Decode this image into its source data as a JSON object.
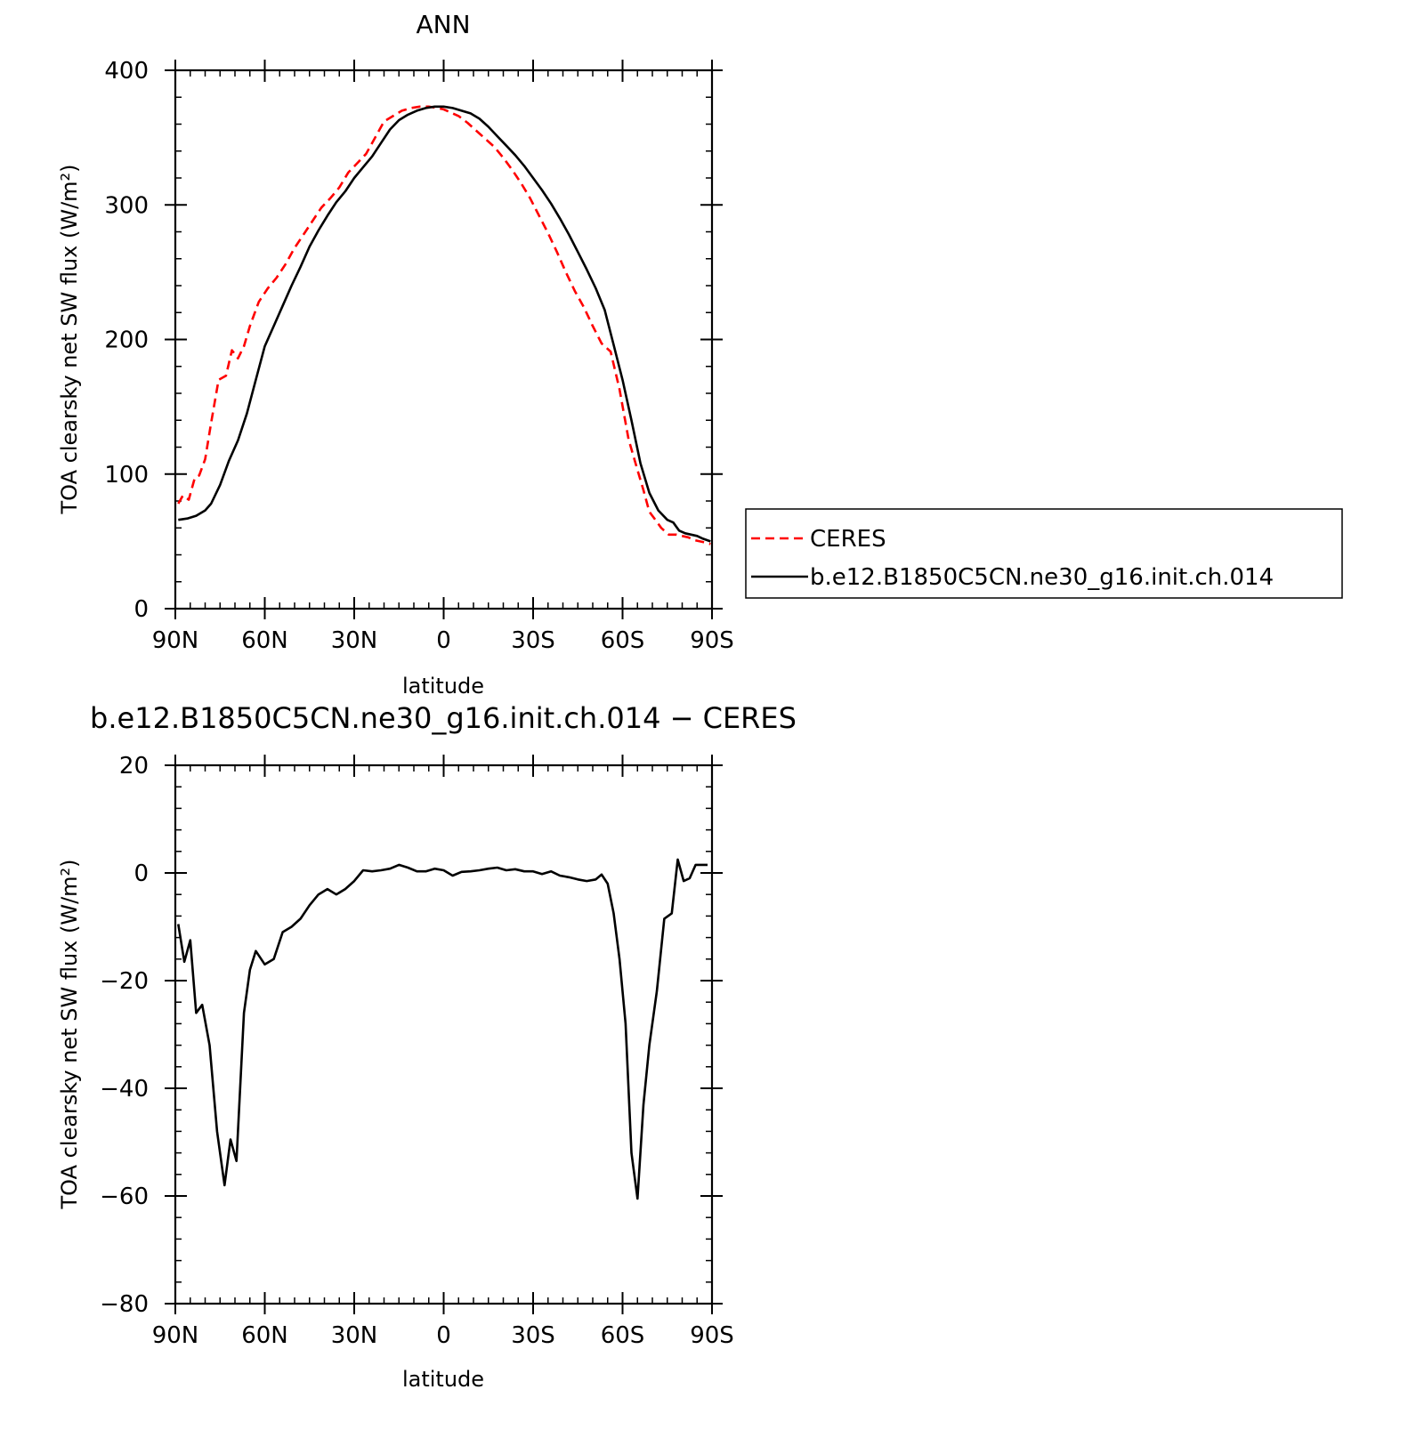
{
  "chart_data": [
    {
      "type": "line",
      "title": "ANN",
      "xlabel": "latitude",
      "ylabel": "TOA clearsky net SW flux (W/m²)",
      "xlim": [
        90,
        -90
      ],
      "ylim": [
        0,
        400
      ],
      "yticks": [
        0,
        100,
        200,
        300,
        400
      ],
      "xticks": [
        90,
        60,
        30,
        0,
        -30,
        -60,
        -90
      ],
      "xtick_labels": [
        "90N",
        "60N",
        "30N",
        "0",
        "30S",
        "60S",
        "90S"
      ],
      "grid": false,
      "legend": {
        "placement": "right",
        "entries": [
          "CERES",
          "b.e12.B1850C5CN.ne30_g16.init.ch.014"
        ]
      },
      "series": [
        {
          "name": "CERES",
          "color": "#ff0000",
          "dash": true,
          "x": [
            89,
            87.5,
            85.5,
            83.5,
            82,
            80,
            78,
            75.5,
            73,
            71,
            69,
            67,
            65,
            62,
            59,
            56,
            53,
            50,
            47,
            44,
            41,
            38,
            35,
            32,
            29,
            26,
            23,
            20,
            17,
            14,
            11,
            8,
            5,
            2,
            0,
            -2,
            -5,
            -8,
            -11,
            -14,
            -17,
            -20,
            -23,
            -26,
            -29,
            -32,
            -35,
            -38,
            -41,
            -44,
            -47,
            -50,
            -53,
            -56,
            -59,
            -62,
            -65,
            -67,
            -69,
            -71,
            -73,
            -75.5,
            -78,
            -80,
            -82,
            -84,
            -86,
            -88,
            -89.5
          ],
          "y": [
            78,
            84,
            81,
            97,
            99,
            111,
            138,
            170,
            173,
            192,
            186,
            195,
            210,
            228,
            238,
            246,
            256,
            268,
            278,
            288,
            298,
            305,
            313,
            324,
            331,
            338,
            350,
            362,
            366,
            370,
            372,
            373,
            373,
            372,
            371,
            369,
            366,
            361,
            355,
            349,
            343,
            335,
            326,
            316,
            305,
            292,
            279,
            265,
            250,
            236,
            224,
            210,
            197,
            191,
            163,
            126,
            103,
            88,
            72,
            66,
            60,
            55,
            55,
            54,
            53,
            51,
            50,
            49,
            48
          ]
        },
        {
          "name": "b.e12.B1850C5CN.ne30_g16.init.ch.014",
          "color": "#000000",
          "dash": false,
          "x": [
            89,
            86,
            83,
            80,
            78,
            75,
            72,
            69,
            66,
            63,
            60,
            57,
            54,
            51,
            48,
            45,
            42,
            39,
            36,
            33,
            30,
            27,
            24,
            21,
            18,
            15,
            12,
            9,
            6,
            3,
            0,
            -3,
            -6,
            -9,
            -12,
            -15,
            -18,
            -21,
            -24,
            -27,
            -30,
            -33,
            -36,
            -39,
            -42,
            -45,
            -48,
            -51,
            -54,
            -57,
            -60,
            -63,
            -66,
            -69,
            -72,
            -75,
            -77,
            -79,
            -81,
            -83,
            -85,
            -87,
            -89.5
          ],
          "y": [
            66,
            67,
            69,
            73,
            78,
            92,
            110,
            125,
            145,
            170,
            195,
            210,
            225,
            240,
            254,
            269,
            281,
            292,
            302,
            310,
            320,
            328,
            336,
            346,
            356,
            363,
            367,
            370,
            372,
            373,
            373,
            372,
            370,
            368,
            364,
            358,
            351,
            344,
            337,
            329,
            320,
            311,
            301,
            290,
            278,
            265,
            252,
            238,
            222,
            196,
            170,
            140,
            108,
            86,
            73,
            66,
            64,
            58,
            56,
            55,
            54,
            52,
            50
          ]
        }
      ]
    },
    {
      "type": "line",
      "title": "b.e12.B1850C5CN.ne30_g16.init.ch.014 − CERES",
      "xlabel": "latitude",
      "ylabel": "TOA clearsky net SW flux (W/m²)",
      "xlim": [
        90,
        -90
      ],
      "ylim": [
        -80,
        20
      ],
      "yticks": [
        -80,
        -60,
        -40,
        -20,
        0,
        20
      ],
      "ytick_labels": [
        "−80",
        "−60",
        "−40",
        "−20",
        "0",
        "20"
      ],
      "xticks": [
        90,
        60,
        30,
        0,
        -30,
        -60,
        -90
      ],
      "xtick_labels": [
        "90N",
        "60N",
        "30N",
        "0",
        "30S",
        "60S",
        "90S"
      ],
      "grid": false,
      "series": [
        {
          "color": "#000000",
          "dash": false,
          "x": [
            89,
            87,
            85,
            83,
            81,
            78.5,
            76,
            73.5,
            71.5,
            69.5,
            67,
            65,
            63,
            60,
            57,
            54,
            51,
            48,
            45,
            42,
            39,
            36,
            33,
            30,
            27,
            24,
            21,
            18,
            15,
            12,
            9,
            6,
            3,
            0,
            -3,
            -6,
            -9,
            -12,
            -15,
            -18,
            -21,
            -24,
            -27,
            -30,
            -33,
            -36,
            -39,
            -42,
            -45,
            -48,
            -51,
            -53,
            -55,
            -57,
            -59,
            -61,
            -63,
            -65,
            -67,
            -69,
            -71.5,
            -74,
            -76.5,
            -78.5,
            -80.5,
            -82.5,
            -84.5,
            -86.5,
            -88.5
          ],
          "y": [
            -9.5,
            -16.5,
            -12.5,
            -26,
            -24.5,
            -32,
            -48,
            -58,
            -49.5,
            -53.5,
            -26,
            -18,
            -14.5,
            -17,
            -16,
            -11,
            -10,
            -8.5,
            -6,
            -4,
            -3,
            -4,
            -3,
            -1.5,
            0.5,
            0.3,
            0.5,
            0.8,
            1.5,
            1,
            0.3,
            0.3,
            0.8,
            0.5,
            -0.5,
            0.2,
            0.3,
            0.5,
            0.8,
            1,
            0.5,
            0.7,
            0.3,
            0.3,
            -0.2,
            0.3,
            -0.5,
            -0.8,
            -1.2,
            -1.5,
            -1.2,
            -0.3,
            -2,
            -7.5,
            -16,
            -28,
            -52,
            -60.5,
            -43,
            -32,
            -22,
            -8.5,
            -7.5,
            2.5,
            -1.5,
            -1,
            1.5,
            1.5,
            1.5
          ]
        }
      ]
    }
  ]
}
